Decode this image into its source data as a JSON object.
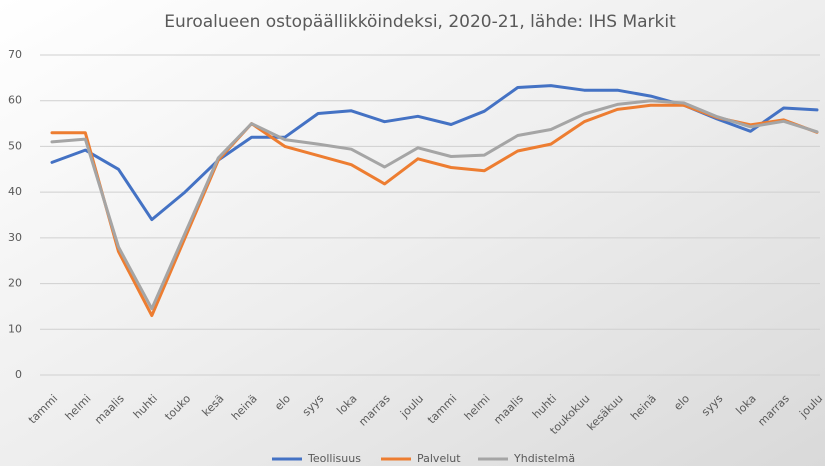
{
  "chart_data": {
    "type": "line",
    "title": "Euroalueen ostopäällikköindeksi, 2020-21, lähde: IHS Markit",
    "categories": [
      "tammi",
      "helmi",
      "maalis",
      "huhti",
      "touko",
      "kesä",
      "heinä",
      "elo",
      "syys",
      "loka",
      "marras",
      "joulu",
      "tammi",
      "helmi",
      "maalis",
      "huhti",
      "toukokuu",
      "kesäkuu",
      "heinä",
      "elo",
      "syys",
      "loka",
      "marras",
      "joulu"
    ],
    "series": [
      {
        "name": "Teollisuus",
        "color": "#4472c4",
        "values": [
          46.5,
          49.2,
          45,
          34,
          40,
          47,
          52,
          52,
          57.2,
          57.8,
          55.4,
          56.6,
          54.8,
          57.7,
          62.9,
          63.3,
          62.3,
          62.3,
          61,
          59,
          56,
          53.3,
          58.4,
          58.0
        ]
      },
      {
        "name": "Palvelut",
        "color": "#ed7d31",
        "values": [
          53,
          53,
          27,
          13,
          30,
          47,
          55,
          50,
          48,
          46,
          41.8,
          47.3,
          45.4,
          44.7,
          49,
          50.5,
          55.4,
          58.1,
          59,
          59,
          56.3,
          54.7,
          55.8,
          53.1
        ]
      },
      {
        "name": "Yhdistelmä",
        "color": "#a5a5a5",
        "values": [
          51,
          51.6,
          28,
          14.5,
          31,
          47.5,
          55,
          51.5,
          50.5,
          49.4,
          45.5,
          49.7,
          47.8,
          48.1,
          52.4,
          53.7,
          57.1,
          59.2,
          60,
          59.5,
          56.5,
          54.3,
          55.5,
          53.2
        ]
      }
    ],
    "ylim": [
      0,
      70
    ],
    "yticks": [
      0,
      10,
      20,
      30,
      40,
      50,
      60,
      70
    ],
    "grid": true,
    "legend": "bottom"
  }
}
